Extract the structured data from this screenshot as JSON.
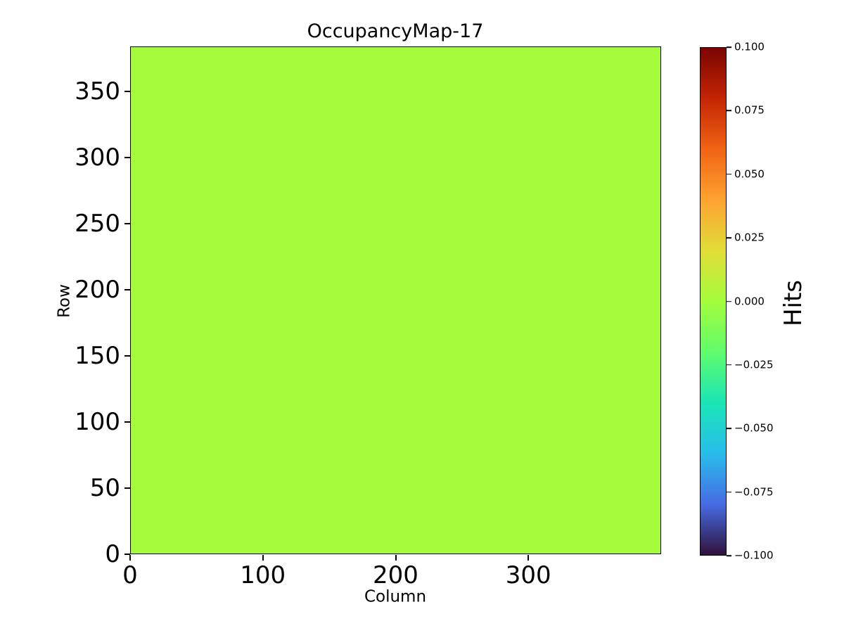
{
  "page": {
    "background": "#ffffff"
  },
  "chart_data": {
    "type": "heatmap",
    "title": "OccupancyMap-17",
    "xlabel": "Column",
    "ylabel": "Row",
    "xlim": [
      0,
      400
    ],
    "ylim": [
      0,
      384
    ],
    "xticks": [
      0,
      100,
      200,
      300
    ],
    "yticks": [
      0,
      50,
      100,
      150,
      200,
      250,
      300,
      350
    ],
    "grid": false,
    "legend": "none",
    "uniform_value": 0.0,
    "cell_color": "#a4fb3c",
    "spine_color": "#000000",
    "colorbar": {
      "label": "Hits",
      "min": -0.1,
      "max": 0.1,
      "colormap": "turbo",
      "ticks": [
        {
          "value": 0.1,
          "label": "0.100"
        },
        {
          "value": 0.075,
          "label": "0.075"
        },
        {
          "value": 0.05,
          "label": "0.050"
        },
        {
          "value": 0.025,
          "label": "0.025"
        },
        {
          "value": 0.0,
          "label": "0.000"
        },
        {
          "value": -0.025,
          "label": "−0.025"
        },
        {
          "value": -0.05,
          "label": "−0.050"
        },
        {
          "value": -0.075,
          "label": "−0.075"
        },
        {
          "value": -0.1,
          "label": "−0.100"
        }
      ],
      "gradient": [
        {
          "t": 0.0,
          "color": "#30123b"
        },
        {
          "t": 0.1,
          "color": "#466be3"
        },
        {
          "t": 0.2,
          "color": "#29bdeb"
        },
        {
          "t": 0.3,
          "color": "#1ae5b5"
        },
        {
          "t": 0.4,
          "color": "#61fc6c"
        },
        {
          "t": 0.5,
          "color": "#a4fc3c"
        },
        {
          "t": 0.6,
          "color": "#e1dc37"
        },
        {
          "t": 0.7,
          "color": "#fea331"
        },
        {
          "t": 0.8,
          "color": "#f16314"
        },
        {
          "t": 0.9,
          "color": "#c42503"
        },
        {
          "t": 1.0,
          "color": "#7a0403"
        }
      ]
    }
  }
}
